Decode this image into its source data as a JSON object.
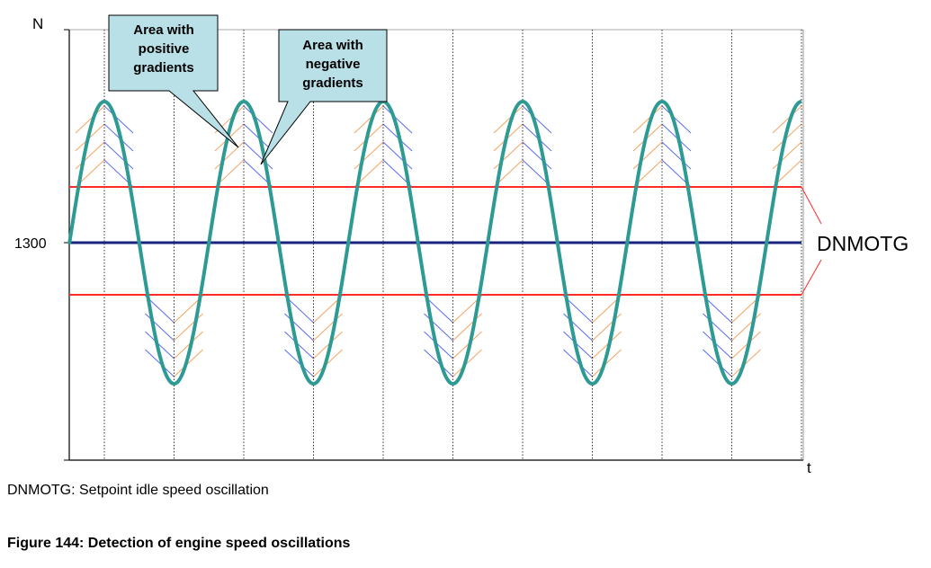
{
  "axes": {
    "y_label": "N",
    "x_label": "t",
    "y_tick_label": "1300"
  },
  "annotations": {
    "positive": "Area with positive gradients",
    "positive_lines": [
      "Area with",
      "positive",
      "gradients"
    ],
    "negative": "Area with negative gradients",
    "negative_lines": [
      "Area with",
      "negative",
      "gradients"
    ],
    "band_label": "DNMOTG"
  },
  "captions": {
    "legend": "DNMOTG: Setpoint idle speed oscillation",
    "figure": "Figure 144: Detection of engine speed oscillations"
  },
  "colors": {
    "signal": "#2e9a94",
    "setpoint": "#1a237e",
    "band": "#ff2a2a",
    "hatch_positive": "#f4a460",
    "hatch_negative": "#5a6cf0",
    "callout_fill": "#b8e0e6",
    "grid": "#000000"
  }
}
